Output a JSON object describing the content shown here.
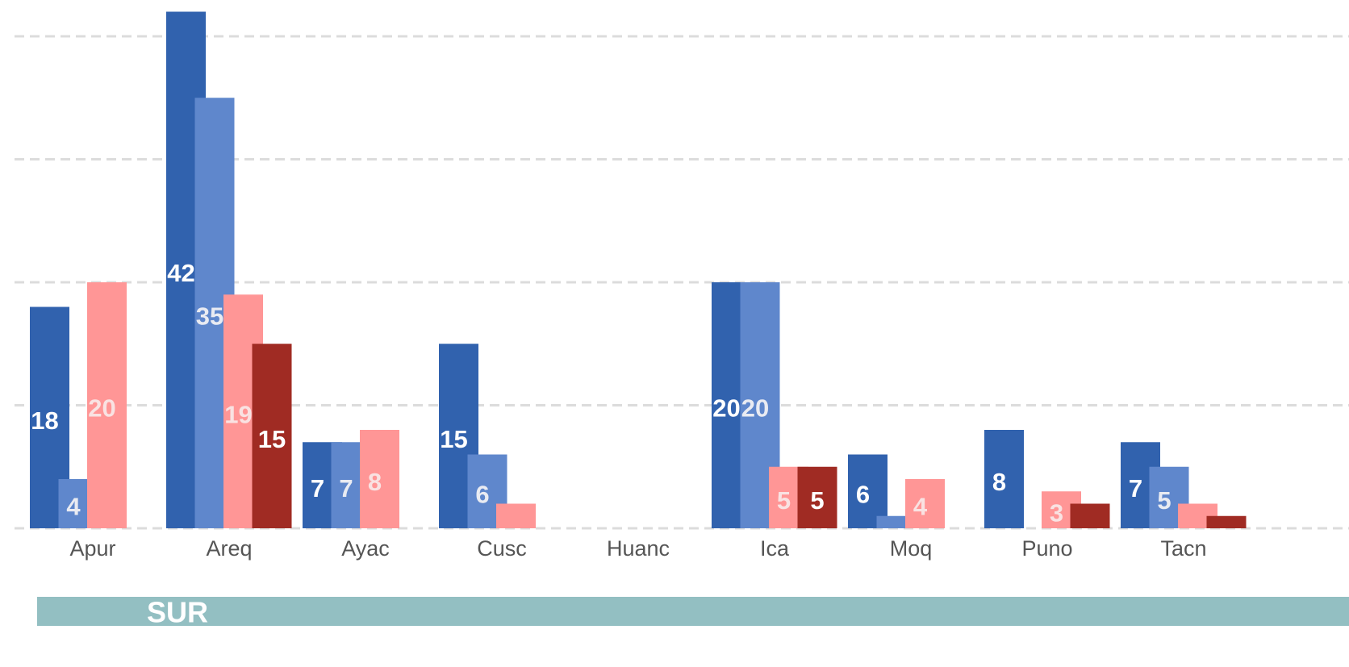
{
  "chart_data": {
    "type": "bar",
    "categories": [
      "Apur",
      "Areq",
      "Ayac",
      "Cusc",
      "Huanc",
      "Ica",
      "Moq",
      "Puno",
      "Tacn"
    ],
    "series": [
      {
        "color": "#3162ae",
        "label_color": "#ffffff",
        "values": [
          18,
          42,
          7,
          15,
          null,
          20,
          6,
          8,
          7
        ]
      },
      {
        "color": "#5f87cc",
        "label_color": "#e9ebf2",
        "values": [
          4,
          35,
          7,
          6,
          null,
          20,
          1,
          null,
          5
        ]
      },
      {
        "color": "#ff9696",
        "label_color": "#f9e2e2",
        "values": [
          20,
          19,
          8,
          2,
          null,
          5,
          4,
          3,
          2
        ]
      },
      {
        "color": "#a02b23",
        "label_color": "#ffffff",
        "values": [
          null,
          15,
          null,
          null,
          null,
          5,
          null,
          2,
          1
        ]
      }
    ],
    "ylim": [
      0,
      42
    ],
    "yticks": [
      0,
      10,
      20,
      30,
      40
    ],
    "grid": true,
    "panel": "SUR"
  }
}
